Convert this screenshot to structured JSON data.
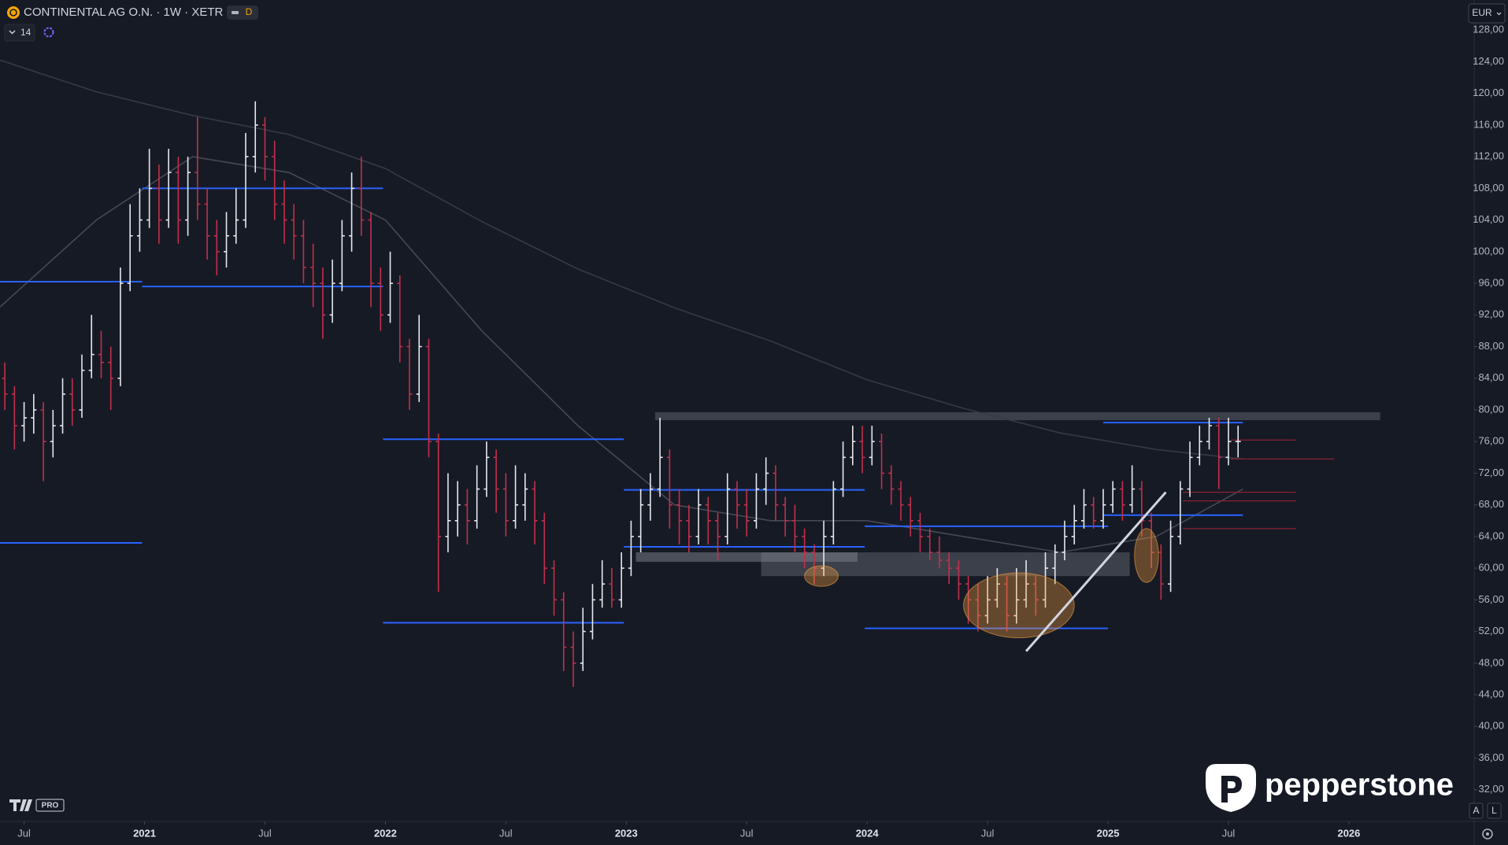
{
  "header": {
    "symbol": "CONTINENTAL AG O.N. · 1W · XETR",
    "badge": "D",
    "indicator": "14",
    "currency": "EUR"
  },
  "brand": {
    "name": "pepperstone",
    "tv": "PRO",
    "buttons": [
      "A",
      "L"
    ]
  },
  "chart_data": {
    "type": "ohlc",
    "up_color": "#e6e8ee",
    "down_color": "#c2304a",
    "xlim": [
      2020.4,
      2026.52
    ],
    "ylim": [
      28,
      131.8
    ],
    "xticks": [
      {
        "value": 2020.5,
        "label": "Jul"
      },
      2021,
      {
        "value": 2021.5,
        "label": "Jul"
      },
      2022,
      {
        "value": 2022.5,
        "label": "Jul"
      },
      2023,
      {
        "value": 2023.5,
        "label": "Jul"
      },
      2024,
      {
        "value": 2024.5,
        "label": "Jul"
      },
      2025,
      {
        "value": 2025.5,
        "label": "Jul"
      },
      2026
    ],
    "yticks": [
      {
        "value": 32,
        "label": "32,00"
      },
      {
        "value": 36,
        "label": "36,00"
      },
      {
        "value": 40,
        "label": "40,00"
      },
      {
        "value": 44,
        "label": "44,00"
      },
      {
        "value": 48,
        "label": "48,00"
      },
      {
        "value": 52,
        "label": "52,00"
      },
      {
        "value": 56,
        "label": "56,00"
      },
      {
        "value": 60,
        "label": "60,00"
      },
      {
        "value": 64,
        "label": "64,00"
      },
      {
        "value": 68,
        "label": "68,00"
      },
      {
        "value": 72,
        "label": "72,00"
      },
      {
        "value": 76,
        "label": "76,00"
      },
      {
        "value": 80,
        "label": "80,00"
      },
      {
        "value": 84,
        "label": "84,00"
      },
      {
        "value": 88,
        "label": "88,00"
      },
      {
        "value": 92,
        "label": "92,00"
      },
      {
        "value": 96,
        "label": "96,00"
      },
      {
        "value": 100,
        "label": "100,00"
      },
      {
        "value": 104,
        "label": "104,00"
      },
      {
        "value": 108,
        "label": "108,00"
      },
      {
        "value": 112,
        "label": "112,00"
      },
      {
        "value": 116,
        "label": "116,00"
      },
      {
        "value": 120,
        "label": "120,00"
      },
      {
        "value": 124,
        "label": "124,00"
      },
      {
        "value": 128,
        "label": "128,00"
      }
    ],
    "x": [
      2020.42,
      2020.46,
      2020.5,
      2020.54,
      2020.58,
      2020.62,
      2020.66,
      2020.7,
      2020.74,
      2020.78,
      2020.82,
      2020.86,
      2020.9,
      2020.94,
      2020.98,
      2021.02,
      2021.06,
      2021.1,
      2021.14,
      2021.18,
      2021.22,
      2021.26,
      2021.3,
      2021.34,
      2021.38,
      2021.42,
      2021.46,
      2021.5,
      2021.54,
      2021.58,
      2021.62,
      2021.66,
      2021.7,
      2021.74,
      2021.78,
      2021.82,
      2021.86,
      2021.9,
      2021.94,
      2021.98,
      2022.02,
      2022.06,
      2022.1,
      2022.14,
      2022.18,
      2022.22,
      2022.26,
      2022.3,
      2022.34,
      2022.38,
      2022.42,
      2022.46,
      2022.5,
      2022.54,
      2022.58,
      2022.62,
      2022.66,
      2022.7,
      2022.74,
      2022.78,
      2022.82,
      2022.86,
      2022.9,
      2022.94,
      2022.98,
      2023.02,
      2023.06,
      2023.1,
      2023.14,
      2023.18,
      2023.22,
      2023.26,
      2023.3,
      2023.34,
      2023.38,
      2023.42,
      2023.46,
      2023.5,
      2023.54,
      2023.58,
      2023.62,
      2023.66,
      2023.7,
      2023.74,
      2023.78,
      2023.82,
      2023.86,
      2023.9,
      2023.94,
      2023.98,
      2024.02,
      2024.06,
      2024.1,
      2024.14,
      2024.18,
      2024.22,
      2024.26,
      2024.3,
      2024.34,
      2024.38,
      2024.42,
      2024.46,
      2024.5,
      2024.54,
      2024.58,
      2024.62,
      2024.66,
      2024.7,
      2024.74,
      2024.78,
      2024.82,
      2024.86,
      2024.9,
      2024.94,
      2024.98,
      2025.02,
      2025.06,
      2025.1,
      2025.14,
      2025.18,
      2025.22,
      2025.26,
      2025.3,
      2025.34,
      2025.38,
      2025.42,
      2025.46,
      2025.5,
      2025.54
    ],
    "bars": [
      [
        84,
        86,
        80,
        82
      ],
      [
        82,
        83,
        75,
        78
      ],
      [
        78,
        81,
        76,
        79
      ],
      [
        79,
        82,
        77,
        80
      ],
      [
        80,
        81,
        71,
        76
      ],
      [
        76,
        80,
        74,
        78
      ],
      [
        78,
        84,
        77,
        82
      ],
      [
        82,
        84,
        78,
        80
      ],
      [
        80,
        87,
        79,
        85
      ],
      [
        85,
        92,
        84,
        87
      ],
      [
        87,
        90,
        84,
        86
      ],
      [
        86,
        88,
        80,
        84
      ],
      [
        84,
        98,
        83,
        96
      ],
      [
        96,
        106,
        95,
        102
      ],
      [
        102,
        108,
        100,
        104
      ],
      [
        104,
        113,
        103,
        108
      ],
      [
        108,
        111,
        101,
        104
      ],
      [
        104,
        113,
        103,
        110
      ],
      [
        110,
        112,
        101,
        104
      ],
      [
        104,
        112,
        102,
        110
      ],
      [
        110,
        117,
        104,
        106
      ],
      [
        106,
        108,
        99,
        102
      ],
      [
        102,
        104,
        97,
        100
      ],
      [
        100,
        105,
        98,
        102
      ],
      [
        102,
        108,
        101,
        104
      ],
      [
        104,
        115,
        103,
        112
      ],
      [
        112,
        119,
        110,
        116
      ],
      [
        116,
        117,
        109,
        112
      ],
      [
        112,
        114,
        104,
        106
      ],
      [
        106,
        109,
        101,
        104
      ],
      [
        104,
        106,
        99,
        102
      ],
      [
        102,
        104,
        96,
        98
      ],
      [
        98,
        101,
        93,
        96
      ],
      [
        96,
        98,
        89,
        92
      ],
      [
        92,
        99,
        91,
        96
      ],
      [
        96,
        104,
        95,
        102
      ],
      [
        102,
        110,
        100,
        108
      ],
      [
        108,
        112,
        102,
        104
      ],
      [
        104,
        105,
        93,
        96
      ],
      [
        96,
        98,
        90,
        92
      ],
      [
        92,
        100,
        91,
        96
      ],
      [
        96,
        97,
        86,
        88
      ],
      [
        88,
        89,
        80,
        82
      ],
      [
        82,
        92,
        81,
        88
      ],
      [
        88,
        89,
        74,
        76
      ],
      [
        76,
        77,
        57,
        64
      ],
      [
        64,
        72,
        62,
        66
      ],
      [
        66,
        71,
        64,
        68
      ],
      [
        68,
        70,
        63,
        66
      ],
      [
        66,
        73,
        65,
        70
      ],
      [
        70,
        76,
        69,
        74
      ],
      [
        74,
        75,
        67,
        70
      ],
      [
        70,
        72,
        64,
        66
      ],
      [
        66,
        73,
        65,
        68
      ],
      [
        68,
        72,
        66,
        70
      ],
      [
        70,
        71,
        63,
        66
      ],
      [
        66,
        67,
        58,
        60
      ],
      [
        60,
        61,
        54,
        56
      ],
      [
        56,
        57,
        47,
        50
      ],
      [
        50,
        52,
        45,
        48
      ],
      [
        48,
        55,
        47,
        52
      ],
      [
        52,
        58,
        51,
        56
      ],
      [
        56,
        61,
        55,
        58
      ],
      [
        58,
        60,
        55,
        56
      ],
      [
        56,
        62,
        55,
        60
      ],
      [
        60,
        66,
        59,
        64
      ],
      [
        64,
        70,
        62,
        68
      ],
      [
        68,
        72,
        66,
        70
      ],
      [
        70,
        79,
        69,
        74
      ],
      [
        74,
        75,
        65,
        68
      ],
      [
        68,
        70,
        63,
        66
      ],
      [
        66,
        68,
        62,
        64
      ],
      [
        64,
        70,
        63,
        68
      ],
      [
        68,
        69,
        63,
        66
      ],
      [
        66,
        67,
        61,
        64
      ],
      [
        64,
        72,
        63,
        70
      ],
      [
        70,
        71,
        65,
        68
      ],
      [
        68,
        70,
        64,
        66
      ],
      [
        66,
        72,
        65,
        70
      ],
      [
        70,
        74,
        68,
        72
      ],
      [
        72,
        73,
        66,
        68
      ],
      [
        68,
        69,
        64,
        66
      ],
      [
        66,
        68,
        62,
        64
      ],
      [
        64,
        65,
        60,
        62
      ],
      [
        62,
        63,
        58,
        60
      ],
      [
        60,
        66,
        59,
        64
      ],
      [
        64,
        71,
        63,
        70
      ],
      [
        70,
        76,
        69,
        74
      ],
      [
        74,
        78,
        73,
        76
      ],
      [
        76,
        78,
        72,
        74
      ],
      [
        74,
        78,
        73,
        76
      ],
      [
        76,
        77,
        70,
        72
      ],
      [
        72,
        73,
        68,
        70
      ],
      [
        70,
        71,
        66,
        68
      ],
      [
        68,
        69,
        64,
        66
      ],
      [
        66,
        67,
        62,
        64
      ],
      [
        64,
        65,
        61,
        62
      ],
      [
        62,
        64,
        60,
        61
      ],
      [
        61,
        62,
        58,
        60
      ],
      [
        60,
        61,
        56,
        58
      ],
      [
        58,
        59,
        53,
        56
      ],
      [
        56,
        58,
        52,
        54
      ],
      [
        54,
        59,
        53,
        56
      ],
      [
        56,
        60,
        55,
        58
      ],
      [
        58,
        59,
        52,
        54
      ],
      [
        54,
        60,
        53,
        56
      ],
      [
        56,
        61,
        55,
        58
      ],
      [
        58,
        59,
        54,
        56
      ],
      [
        56,
        62,
        55,
        60
      ],
      [
        60,
        63,
        58,
        62
      ],
      [
        62,
        66,
        61,
        64
      ],
      [
        64,
        68,
        63,
        66
      ],
      [
        66,
        70,
        65,
        68
      ],
      [
        68,
        69,
        65,
        66
      ],
      [
        66,
        70,
        65,
        68
      ],
      [
        68,
        71,
        67,
        70
      ],
      [
        70,
        71,
        66,
        68
      ],
      [
        68,
        73,
        67,
        70
      ],
      [
        70,
        71,
        64,
        66
      ],
      [
        66,
        67,
        60,
        62
      ],
      [
        62,
        63,
        56,
        58
      ],
      [
        58,
        66,
        57,
        64
      ],
      [
        64,
        71,
        63,
        70
      ],
      [
        70,
        76,
        69,
        74
      ],
      [
        74,
        78,
        73,
        76
      ],
      [
        76,
        79,
        75,
        78
      ],
      [
        78,
        79,
        70,
        74
      ],
      [
        74,
        79,
        73,
        76
      ],
      [
        76,
        78,
        74,
        76
      ]
    ],
    "overlays": [
      {
        "color": "#363a45",
        "x": [
          2020.4,
          2020.8,
          2021.2,
          2021.6,
          2022.0,
          2022.4,
          2022.8,
          2023.2,
          2023.6,
          2024.0,
          2024.4,
          2024.8,
          2025.2,
          2025.56
        ],
        "values": [
          124.2,
          120.2,
          117.2,
          114.8,
          110.5,
          103.8,
          97.8,
          92.9,
          88.7,
          83.8,
          80.2,
          77.1,
          75,
          73.8
        ]
      },
      {
        "color": "#454955",
        "x": [
          2020.4,
          2020.8,
          2021.2,
          2021.6,
          2022.0,
          2022.4,
          2022.8,
          2023.2,
          2023.6,
          2024.0,
          2024.4,
          2024.8,
          2025.2,
          2025.56
        ],
        "values": [
          93,
          104,
          112,
          110,
          104,
          90,
          78,
          68,
          66,
          66,
          64,
          62,
          64,
          70
        ]
      }
    ],
    "levels": [
      {
        "color": "#2962ff",
        "y": 96.2,
        "x": [
          2020.4,
          2020.99
        ]
      },
      {
        "color": "#2962ff",
        "y": 63.2,
        "x": [
          2020.4,
          2020.99
        ]
      },
      {
        "color": "#2962ff",
        "y": 108.0,
        "x": [
          2020.99,
          2021.99
        ]
      },
      {
        "color": "#2962ff",
        "y": 95.6,
        "x": [
          2020.99,
          2021.99
        ]
      },
      {
        "color": "#2962ff",
        "y": 76.3,
        "x": [
          2021.99,
          2022.99
        ]
      },
      {
        "color": "#2962ff",
        "y": 53.1,
        "x": [
          2021.99,
          2022.99
        ]
      },
      {
        "color": "#2962ff",
        "y": 69.9,
        "x": [
          2022.99,
          2023.99
        ]
      },
      {
        "color": "#2962ff",
        "y": 62.7,
        "x": [
          2022.99,
          2023.99
        ]
      },
      {
        "color": "#2962ff",
        "y": 65.3,
        "x": [
          2023.99,
          2025.0
        ]
      },
      {
        "color": "#2962ff",
        "y": 52.4,
        "x": [
          2023.99,
          2025.0
        ]
      },
      {
        "color": "#2962ff",
        "y": 78.4,
        "x": [
          2024.98,
          2025.56
        ]
      },
      {
        "color": "#2962ff",
        "y": 66.7,
        "x": [
          2024.98,
          2025.56
        ]
      },
      {
        "color": "#8a2232",
        "y": 76.2,
        "x": [
          2025.51,
          2025.78
        ]
      },
      {
        "color": "#8a2232",
        "y": 73.8,
        "x": [
          2025.51,
          2025.94
        ]
      },
      {
        "color": "#8a2232",
        "y": 69.6,
        "x": [
          2025.31,
          2025.78
        ]
      },
      {
        "color": "#8a2232",
        "y": 68.5,
        "x": [
          2025.31,
          2025.78
        ]
      },
      {
        "color": "#8a2232",
        "y": 65.0,
        "x": [
          2025.31,
          2025.78
        ]
      }
    ],
    "zones": [
      {
        "color": "#5d606b",
        "y": [
          78.7,
          79.7
        ],
        "x": [
          2023.12,
          2026.13
        ]
      },
      {
        "color": "#5d606b",
        "y": [
          59.0,
          62.0
        ],
        "x": [
          2023.56,
          2025.09
        ]
      },
      {
        "color": "#787b86",
        "y": [
          60.8,
          62.0
        ],
        "x": [
          2023.04,
          2023.96
        ]
      }
    ],
    "ellipses": [
      {
        "color": "#f5a040",
        "x": [
          2023.74,
          2023.88
        ],
        "y": [
          57.7,
          60.3
        ]
      },
      {
        "color": "#f5a040",
        "x": [
          2024.4,
          2024.86
        ],
        "y": [
          51.2,
          59.4
        ]
      },
      {
        "color": "#f5a040",
        "x": [
          2025.11,
          2025.21
        ],
        "y": [
          58.2,
          65.0
        ]
      }
    ],
    "trendline": {
      "color": "#d1d4dc",
      "x": [
        2024.66,
        2025.24
      ],
      "y": [
        49.5,
        69.6
      ]
    }
  }
}
